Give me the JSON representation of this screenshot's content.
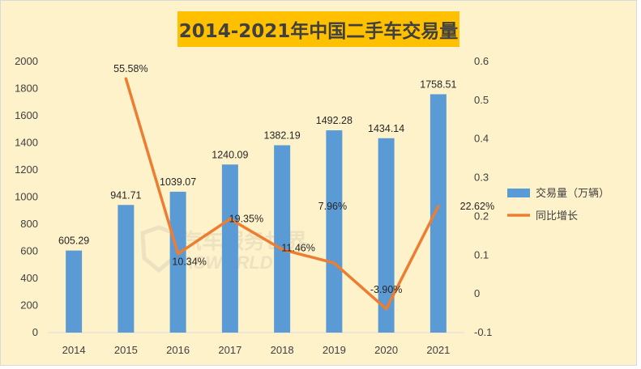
{
  "chart_data": {
    "type": "bar",
    "title": "2014-2021年中国二手车交易量",
    "categories": [
      "2014",
      "2015",
      "2016",
      "2017",
      "2018",
      "2019",
      "2020",
      "2021"
    ],
    "series": [
      {
        "name": "交易量（万辆）",
        "type": "bar",
        "axis": "left",
        "values": [
          605.29,
          941.71,
          1039.07,
          1240.09,
          1382.19,
          1492.28,
          1434.14,
          1758.51
        ],
        "labels": [
          "605.29",
          "941.71",
          "1039.07",
          "1240.09",
          "1382.19",
          "1492.28",
          "1434.14",
          "1758.51"
        ]
      },
      {
        "name": "同比增长",
        "type": "line",
        "axis": "right",
        "values": [
          null,
          0.5558,
          0.1034,
          0.1935,
          0.1146,
          0.0796,
          -0.039,
          0.2262
        ],
        "labels": [
          "",
          "55.58%",
          "10.34%",
          "19.35%",
          "11.46%",
          "7.96%",
          "-3.90%",
          "22.62%"
        ]
      }
    ],
    "ylim": [
      0,
      2000
    ],
    "yticks": [
      "0",
      "200",
      "400",
      "600",
      "800",
      "1000",
      "1200",
      "1400",
      "1600",
      "1800",
      "2000"
    ],
    "y2lim": [
      -0.1,
      0.6
    ],
    "y2ticks": [
      "-0.1",
      "0",
      "0.1",
      "0.2",
      "0.3",
      "0.4",
      "0.5",
      "0.6"
    ],
    "colors": {
      "bar": "#5b9bd5",
      "line": "#ed7d31",
      "background": "#fef2cb",
      "title_bg": "#ffc000"
    },
    "legend_position": "right",
    "watermark": "汽车服务世界 ASWORLD"
  }
}
